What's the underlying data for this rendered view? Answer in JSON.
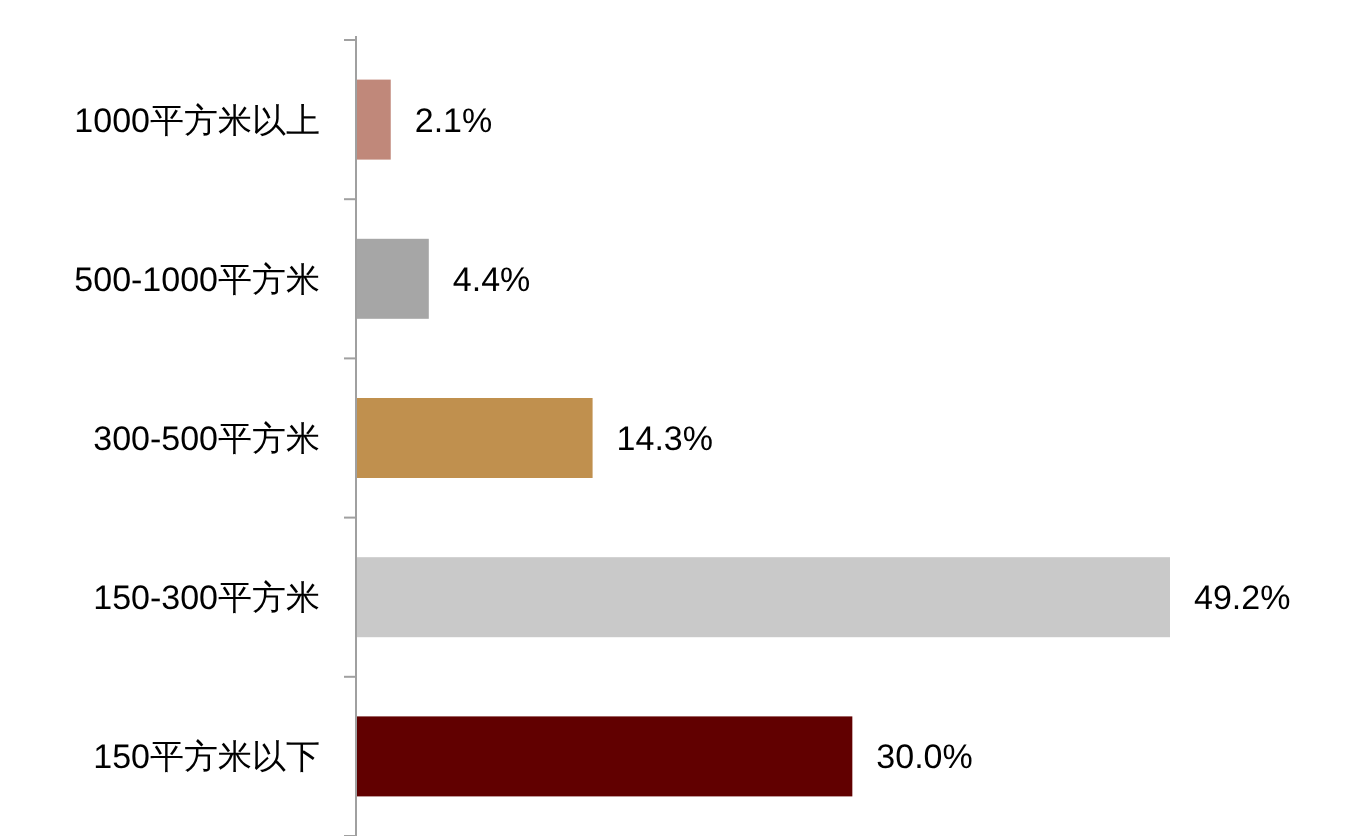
{
  "chart_data": {
    "type": "bar",
    "orientation": "horizontal",
    "categories": [
      "1000平方米以上",
      "500-1000平方米",
      "300-500平方米",
      "150-300平方米",
      "150平方米以下"
    ],
    "values": [
      2.1,
      4.4,
      14.3,
      49.2,
      30.0
    ],
    "colors": [
      "#c0887a",
      "#a6a6a6",
      "#c0904e",
      "#c9c9c9",
      "#610000"
    ],
    "value_labels": [
      "2.1%",
      "4.4%",
      "14.3%",
      "49.2%",
      "30.0%"
    ]
  }
}
